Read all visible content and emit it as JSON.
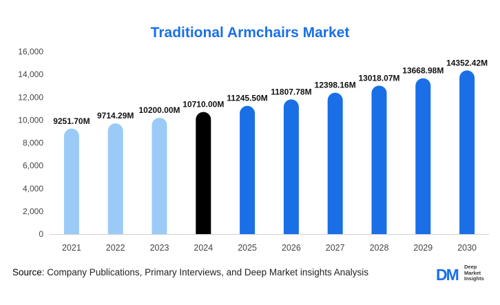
{
  "chart_data": {
    "type": "bar",
    "title": "Traditional Armchairs Market",
    "categories": [
      "2021",
      "2022",
      "2023",
      "2024",
      "2025",
      "2026",
      "2027",
      "2028",
      "2029",
      "2030"
    ],
    "values": [
      9251.7,
      9714.29,
      10200.0,
      10710.0,
      11245.5,
      11807.78,
      12398.16,
      13018.07,
      13668.98,
      14352.42
    ],
    "data_labels": [
      "9251.70M",
      "9714.29M",
      "10200.00M",
      "10710.00M",
      "11245.50M",
      "11807.78M",
      "12398.16M",
      "13018.07M",
      "13668.98M",
      "14352.42M"
    ],
    "y_ticks": [
      "0",
      "2,000",
      "4,000",
      "6,000",
      "8,000",
      "10,000",
      "12,000",
      "14,000",
      "16,000"
    ],
    "ylim": [
      0,
      16000
    ],
    "xlabel": "",
    "ylabel": "",
    "grid": false,
    "bar_colors": [
      "#9ccaf8",
      "#9ccaf8",
      "#9ccaf8",
      "#000000",
      "#1a6fe6",
      "#1a6fe6",
      "#1a6fe6",
      "#1a6fe6",
      "#1a6fe6",
      "#1a6fe6"
    ]
  },
  "source": {
    "label": "Source",
    "text": ": Company Publications, Primary Interviews, and Deep Market insights Analysis"
  },
  "logo": {
    "mark": "DM",
    "line1": "Deep",
    "line2": "Market",
    "line3": "Insights"
  }
}
